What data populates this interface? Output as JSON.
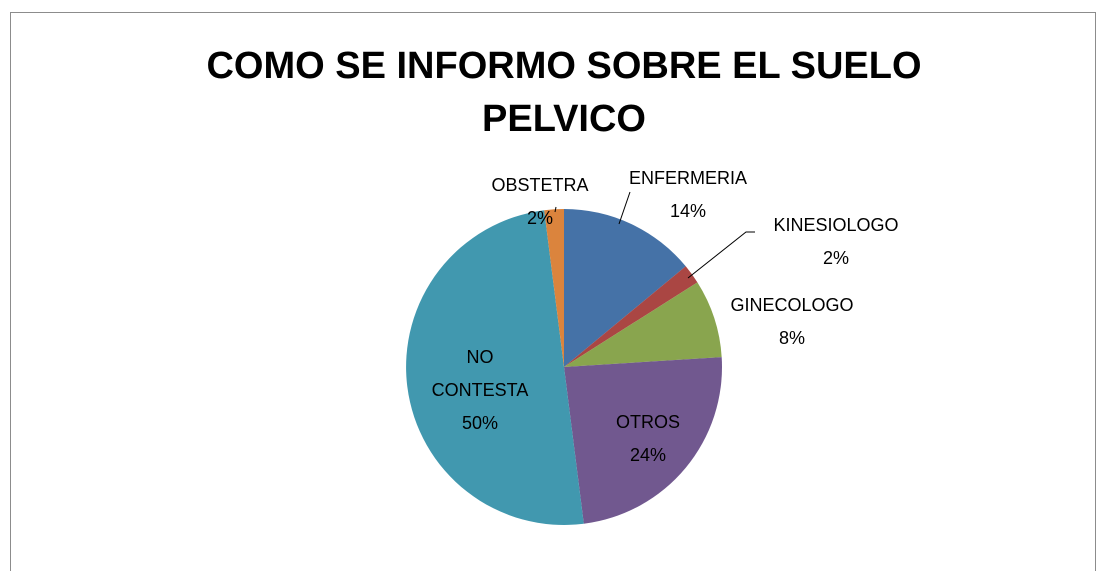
{
  "chart_data": {
    "type": "pie",
    "title": "COMO SE INFORMO SOBRE EL SUELO PELVICO",
    "categories": [
      "ENFERMERIA",
      "KINESIOLOGO",
      "GINECOLOGO",
      "OTROS",
      "NO CONTESTA",
      "OBSTETRA"
    ],
    "values": [
      14,
      2,
      8,
      24,
      50,
      2
    ],
    "value_labels": [
      "14%",
      "2%",
      "8%",
      "24%",
      "50%",
      "2%"
    ],
    "colors": [
      "#4572a7",
      "#aa4643",
      "#89a54e",
      "#71588f",
      "#4198af",
      "#db843d"
    ]
  }
}
